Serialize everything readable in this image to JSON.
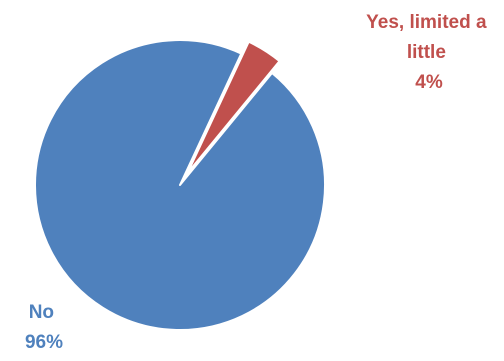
{
  "chart_data": {
    "type": "pie",
    "slices": [
      {
        "label": "No",
        "value": 96,
        "value_label": "96%",
        "color": "#4f81bd",
        "exploded": false
      },
      {
        "label_lines": [
          "Yes, limited a",
          "little"
        ],
        "label": "Yes, limited a little",
        "value": 4,
        "value_label": "4%",
        "color": "#c0504d",
        "exploded": true
      }
    ],
    "legend": "none"
  }
}
